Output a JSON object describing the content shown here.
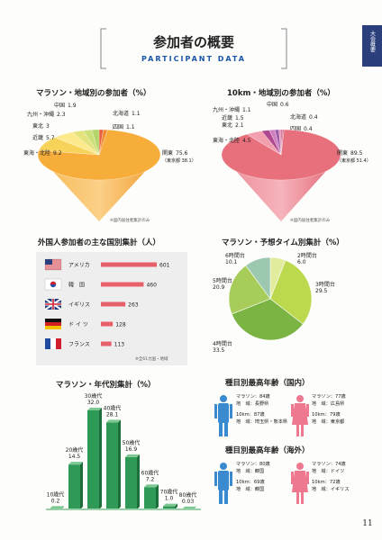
{
  "header": {
    "title": "参加者の概要",
    "subtitle": "PARTICIPANT DATA",
    "side_tab": "大会概要",
    "page_number": "11"
  },
  "chart_data": [
    {
      "type": "cone",
      "title": "マラソン・地域別の参加者（%）",
      "categories": [
        "北海道",
        "四国",
        "関東",
        "東海・北陸",
        "近畿",
        "東北",
        "九州・沖縄",
        "中国"
      ],
      "values": [
        1.1,
        1.1,
        75.6,
        9.2,
        5.7,
        3.0,
        2.3,
        1.9
      ],
      "colors": [
        "#e8603c",
        "#f28a2e",
        "#f6ad3a",
        "#f8d35a",
        "#fbe98c",
        "#e4e27c",
        "#cde07a",
        "#b5d46a"
      ],
      "sublabel": "（東京都 38.1）",
      "note": "※国内居住者集計のみ"
    },
    {
      "type": "cone",
      "title": "10km・地域別の参加者（%）",
      "categories": [
        "北海道",
        "四国",
        "関東",
        "東海・北陸",
        "東北",
        "近畿",
        "九州・沖縄",
        "中国"
      ],
      "values": [
        0.4,
        0.4,
        89.5,
        4.5,
        2.1,
        1.5,
        1.1,
        0.6
      ],
      "colors": [
        "#c04a7a",
        "#d86090",
        "#e8707c",
        "#f2a0b0",
        "#b04890",
        "#d080c0",
        "#9c5aa8",
        "#e890b8"
      ],
      "sublabel": "（東京都 51.4）",
      "note": "※国内居住者集計のみ"
    },
    {
      "type": "barh",
      "title": "外国人参加者の主な国別集計（人）",
      "categories": [
        "アメリカ",
        "韓　国",
        "イギリス",
        "ド イ ツ",
        "フランス"
      ],
      "values": [
        601,
        460,
        263,
        128,
        113
      ],
      "color": "#e8606a",
      "note": "※全61カ国・地域"
    },
    {
      "type": "pie",
      "title": "マラソン・予想タイム別集計（%）",
      "categories": [
        "2時間台",
        "3時間台",
        "4時間台",
        "5時間台",
        "6時間台"
      ],
      "values": [
        6.0,
        29.5,
        33.5,
        20.9,
        10.1
      ],
      "value_labels": [
        "6.0",
        "29.5",
        "33.5",
        "20.9",
        "10.1"
      ],
      "colors": [
        "#e2ec9c",
        "#bcd84e",
        "#7cb444",
        "#a8cc5a",
        "#9cc8b0"
      ]
    },
    {
      "type": "bar",
      "title": "マラソン・年代別集計（%）",
      "categories": [
        "10歳代",
        "20歳代",
        "30歳代",
        "40歳代",
        "50歳代",
        "60歳代",
        "70歳代",
        "80歳代"
      ],
      "values": [
        0.2,
        14.5,
        32.0,
        28.1,
        16.9,
        7.2,
        1.0,
        0.03
      ],
      "value_labels": [
        "0.2",
        "14.5",
        "32.0",
        "28.1",
        "16.9",
        "7.2",
        "1.0",
        "0.03"
      ],
      "color": "#2f9a58"
    }
  ],
  "records": [
    {
      "title": "種目別最高年齢（国内）",
      "male": [
        "マラソン：84歳",
        "地　域：長野県",
        "10km：87歳",
        "地　域：埼玉県・熊本県"
      ],
      "female": [
        "マラソン：77歳",
        "地　域：広島県",
        "10km：79歳",
        "地　域：東京都"
      ]
    },
    {
      "title": "種目別最高年齢（海外）",
      "male": [
        "マラソン：80歳",
        "地　域：韓国",
        "10km：69歳",
        "地　域：韓国"
      ],
      "female": [
        "マラソン：74歳",
        "地　域：ドイツ",
        "10km：72歳",
        "地　域：イギリス"
      ]
    }
  ]
}
